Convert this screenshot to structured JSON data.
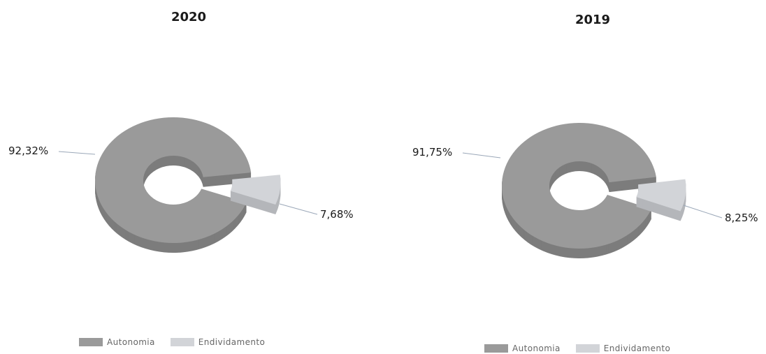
{
  "legend": {
    "items": [
      {
        "label": "Autonomia",
        "color": "#9a9a9a"
      },
      {
        "label": "Endividamento",
        "color": "#d2d4d8"
      }
    ]
  },
  "chart_data": [
    {
      "type": "pie",
      "title": "2020",
      "categories": [
        "Autonomia",
        "Endividamento"
      ],
      "values": [
        92.32,
        7.68
      ],
      "data_labels": [
        "92,32%",
        "7,68%"
      ],
      "style": "3d-donut-exploded",
      "legend_position": "bottom"
    },
    {
      "type": "pie",
      "title": "2019",
      "categories": [
        "Autonomia",
        "Endividamento"
      ],
      "values": [
        91.75,
        8.25
      ],
      "data_labels": [
        "91,75%",
        "8,25%"
      ],
      "style": "3d-donut-exploded",
      "legend_position": "bottom"
    }
  ]
}
